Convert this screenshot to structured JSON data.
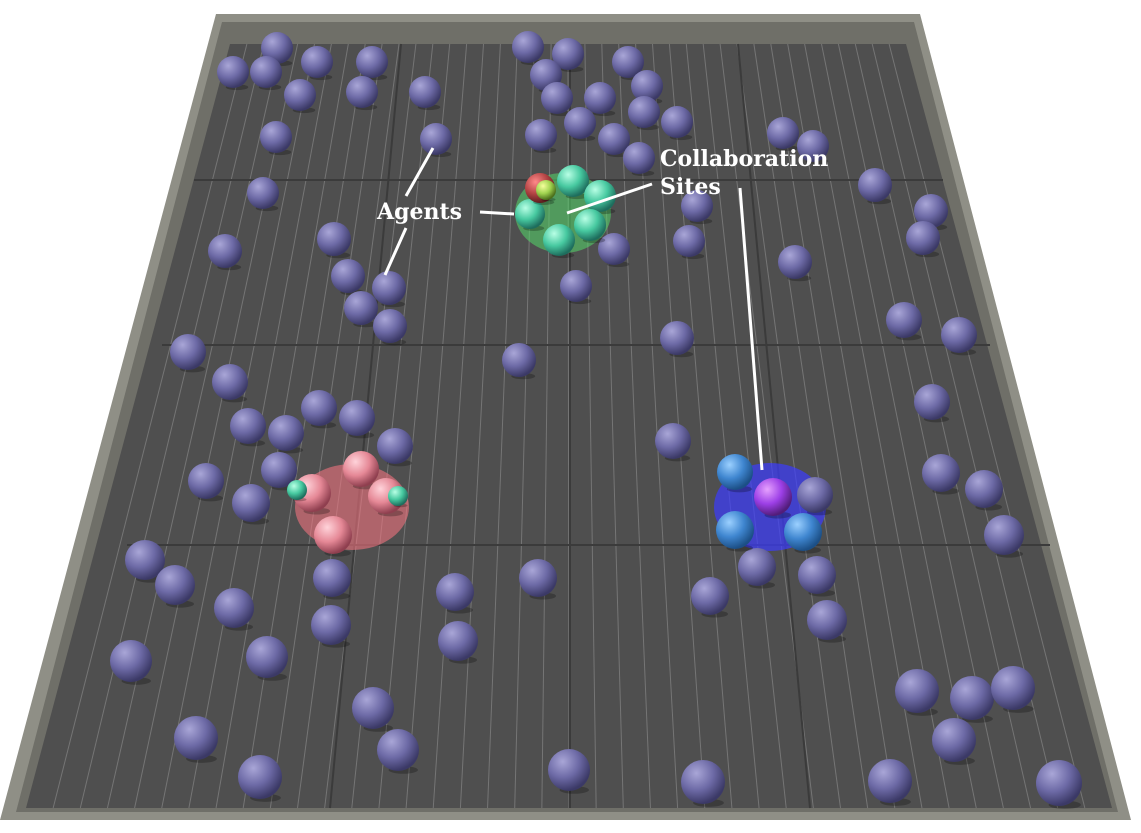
{
  "annotations": {
    "agents_label": "Agents",
    "sites_label_line1": "Collaboration",
    "sites_label_line2": "Sites"
  },
  "colors": {
    "wall": "#8f8f86",
    "wall_shadow": "#6f6f68",
    "floor": "#4f4f4f",
    "floor_line": "#bdbdbd",
    "agent": "#6d6aa6",
    "site_green": "#54d86a",
    "site_red": "#f0737f",
    "site_blue": "#3c3cff",
    "label": "#ffffff"
  }
}
